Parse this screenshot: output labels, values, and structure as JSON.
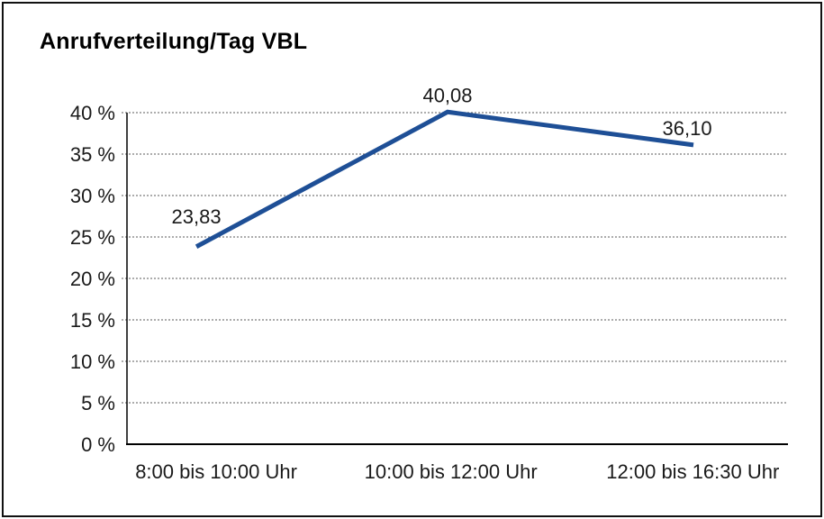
{
  "chart_data": {
    "type": "line",
    "title": "Anrufverteilung/Tag VBL",
    "categories": [
      "8:00 bis 10:00 Uhr",
      "10:00 bis 12:00 Uhr",
      "12:00 bis 16:30 Uhr"
    ],
    "values": [
      23.83,
      40.08,
      36.1
    ],
    "point_labels": [
      "23,83",
      "40,08",
      "36,10"
    ],
    "xlabel": "",
    "ylabel": "",
    "ylim": [
      0,
      40
    ],
    "ytick_step": 5,
    "ytick_labels": [
      "0 %",
      "5 %",
      "10 %",
      "15 %",
      "20 %",
      "25 %",
      "30 %",
      "35 %",
      "40 %"
    ],
    "grid": true,
    "gridline_style": "dotted",
    "legend": "none",
    "colors": {
      "line": "#1e4f96",
      "grid": "#7a7a7a",
      "axis": "#000000",
      "text": "#1a1a1a",
      "background": "#ffffff",
      "frame_border": "#111111"
    }
  }
}
